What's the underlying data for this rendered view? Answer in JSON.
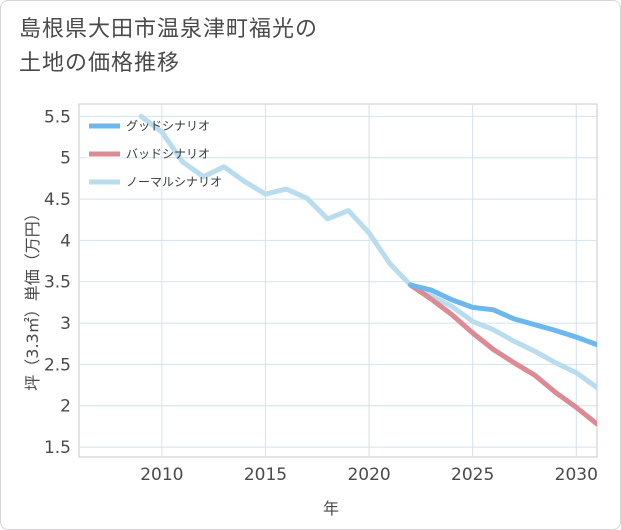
{
  "page": {
    "title_line1": "島根県大田市温泉津町福光の",
    "title_line2": "土地の価格推移"
  },
  "chart_data": {
    "type": "line",
    "xlabel": "年",
    "ylabel": "坪（3.3㎡）単価（万円）",
    "xlim": [
      2006,
      2031
    ],
    "ylim": [
      1.38,
      5.65
    ],
    "x_ticks": [
      2010,
      2015,
      2020,
      2025,
      2030
    ],
    "y_ticks": [
      1.5,
      2,
      2.5,
      3,
      3.5,
      4,
      4.5,
      5,
      5.5
    ],
    "y_tick_labels": [
      "1.5",
      "2",
      "2.5",
      "3",
      "3.5",
      "4",
      "4.5",
      "5",
      "5.5"
    ],
    "grid": true,
    "legend_position": "top-left",
    "series": [
      {
        "name": "グッドシナリオ",
        "color": "#6cb8ee",
        "x": [
          2022,
          2023,
          2024,
          2025,
          2026,
          2027,
          2028,
          2029,
          2030,
          2031
        ],
        "values": [
          3.46,
          3.4,
          3.28,
          3.19,
          3.16,
          3.05,
          2.98,
          2.91,
          2.83,
          2.74
        ]
      },
      {
        "name": "バッドシナリオ",
        "color": "#dc8a93",
        "x": [
          2022,
          2023,
          2024,
          2025,
          2026,
          2027,
          2028,
          2029,
          2030,
          2031
        ],
        "values": [
          3.46,
          3.29,
          3.1,
          2.88,
          2.68,
          2.52,
          2.37,
          2.16,
          1.98,
          1.78
        ]
      },
      {
        "name": "ノーマルシナリオ",
        "color": "#b9dcee",
        "x": [
          2009,
          2010,
          2011,
          2012,
          2013,
          2014,
          2015,
          2016,
          2017,
          2018,
          2019,
          2020,
          2021,
          2022,
          2023,
          2024,
          2025,
          2026,
          2027,
          2028,
          2029,
          2030,
          2031
        ],
        "values": [
          5.5,
          5.31,
          4.95,
          4.77,
          4.89,
          4.71,
          4.56,
          4.62,
          4.51,
          4.26,
          4.36,
          4.09,
          3.72,
          3.46,
          3.33,
          3.2,
          3.02,
          2.92,
          2.78,
          2.66,
          2.52,
          2.4,
          2.22
        ]
      }
    ]
  }
}
